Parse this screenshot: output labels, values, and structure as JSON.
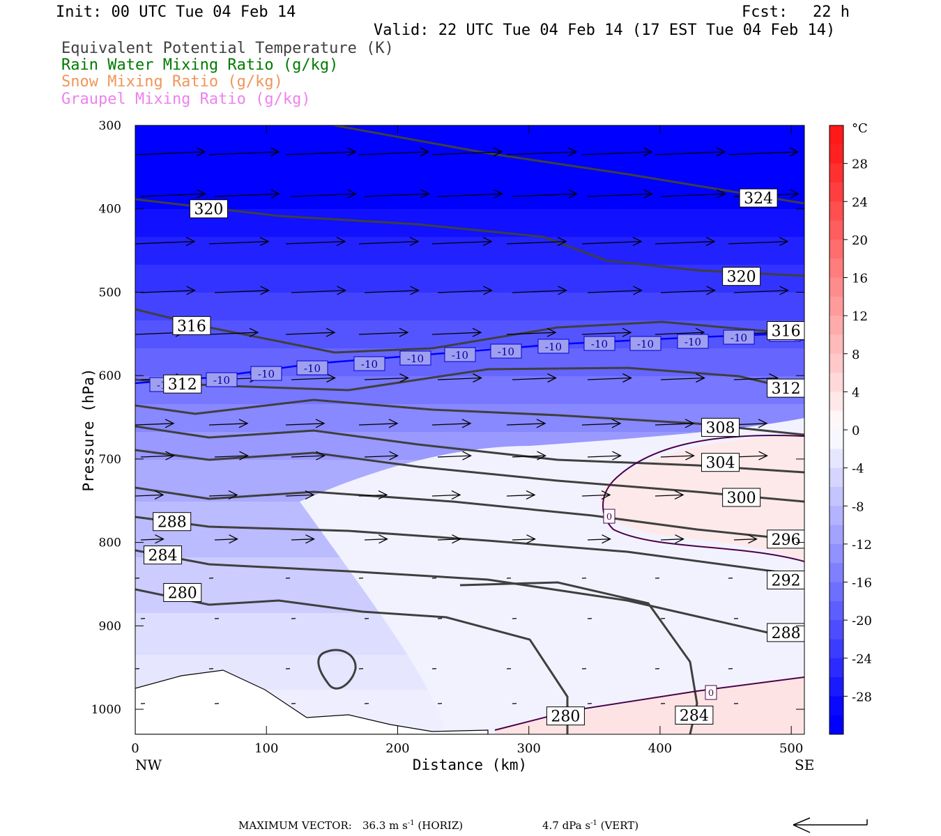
{
  "header": {
    "init": "Init: 00 UTC Tue 04 Feb 14",
    "fcst_label": "Fcst:",
    "fcst_value": "22 h",
    "valid": "Valid: 22 UTC Tue 04 Feb 14 (17 EST Tue 04 Feb 14)"
  },
  "fields": [
    {
      "label": "Equivalent Potential Temperature (K)",
      "color": "#404040"
    },
    {
      "label": "Rain Water Mixing Ratio (g/kg)",
      "color": "#007a00"
    },
    {
      "label": "Snow Mixing Ratio (g/kg)",
      "color": "#f0965a"
    },
    {
      "label": "Graupel Mixing Ratio (g/kg)",
      "color": "#ee82ee"
    }
  ],
  "chart_data": {
    "type": "cross-section",
    "xlabel": "Distance (km)",
    "ylabel": "Pressure (hPa)",
    "x_ticks": [
      0,
      100,
      200,
      300,
      400,
      500
    ],
    "y_ticks": [
      300,
      400,
      500,
      600,
      700,
      800,
      900,
      1000
    ],
    "xlim": [
      0,
      510
    ],
    "ylim": [
      300,
      1030
    ],
    "x_end_labels": {
      "left": "NW",
      "right": "SE"
    },
    "colorbar": {
      "unit": "°C",
      "ticks": [
        28,
        24,
        20,
        16,
        12,
        8,
        4,
        0,
        -4,
        -8,
        -12,
        -16,
        -20,
        -24,
        -28
      ],
      "range": [
        -32,
        32
      ]
    },
    "theta_e_labels": [
      {
        "value": "320",
        "x": 56,
        "p": 400
      },
      {
        "value": "324",
        "x": 475,
        "p": 387
      },
      {
        "value": "320",
        "x": 462,
        "p": 481
      },
      {
        "value": "316",
        "x": 43,
        "p": 540
      },
      {
        "value": "316",
        "x": 496,
        "p": 546
      },
      {
        "value": "312",
        "x": 36,
        "p": 610
      },
      {
        "value": "312",
        "x": 496,
        "p": 615
      },
      {
        "value": "308",
        "x": 446,
        "p": 662
      },
      {
        "value": "304",
        "x": 446,
        "p": 704
      },
      {
        "value": "300",
        "x": 462,
        "p": 746
      },
      {
        "value": "296",
        "x": 496,
        "p": 796
      },
      {
        "value": "292",
        "x": 496,
        "p": 845
      },
      {
        "value": "288",
        "x": 28,
        "p": 775
      },
      {
        "value": "288",
        "x": 496,
        "p": 908
      },
      {
        "value": "284",
        "x": 21,
        "p": 815
      },
      {
        "value": "284",
        "x": 426,
        "p": 1007
      },
      {
        "value": "280",
        "x": 36,
        "p": 860
      },
      {
        "value": "280",
        "x": 328,
        "p": 1008
      }
    ],
    "temp_minus10_labels": [
      "-10",
      "-10",
      "-10",
      "-10",
      "-10",
      "-10",
      "-10",
      "-10",
      "-10",
      "-10",
      "-10",
      "-10",
      "-10",
      "-10",
      "-10"
    ],
    "temp_zero_labels": [
      "0",
      "0"
    ]
  },
  "footer": {
    "max_vector_label": "MAXIMUM VECTOR:",
    "horiz": "36.3 m s",
    "horiz_unit": "(HORIZ)",
    "vert": "4.7 dPa s",
    "vert_unit": "(VERT)",
    "exponent": "-1"
  }
}
